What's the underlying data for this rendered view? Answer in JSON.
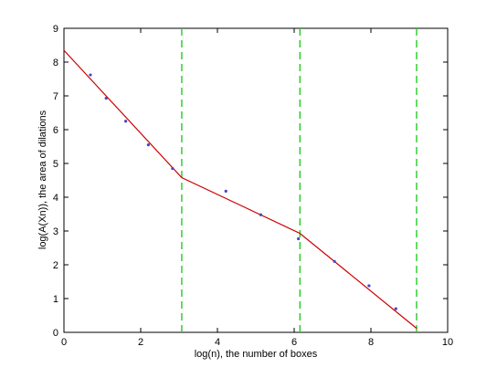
{
  "chart_data": {
    "type": "scatter",
    "title": "",
    "xlabel": "log(n), the number of boxes",
    "ylabel": "log(A(Xn)), the area of dilations",
    "xlim": [
      0,
      10
    ],
    "ylim": [
      0,
      9
    ],
    "xticks": [
      0,
      2,
      4,
      6,
      8,
      10
    ],
    "yticks": [
      0,
      1,
      2,
      3,
      4,
      5,
      6,
      7,
      8,
      9
    ],
    "grid": false,
    "series": [
      {
        "kind": "points",
        "color": "#4444cc",
        "x": [
          0.69,
          1.1,
          1.61,
          2.2,
          2.83,
          4.22,
          5.13,
          6.11,
          7.05,
          7.95,
          8.65
        ],
        "y": [
          7.62,
          6.93,
          6.25,
          5.55,
          4.85,
          4.18,
          3.48,
          2.77,
          2.1,
          1.38,
          0.7
        ]
      },
      {
        "kind": "line",
        "color": "#cc0000",
        "x": [
          0.0,
          3.07,
          6.15,
          9.19
        ],
        "y": [
          8.35,
          4.58,
          2.93,
          0.12
        ]
      }
    ],
    "vlines": {
      "color": "#22cc22",
      "x": [
        3.07,
        6.15,
        9.19
      ]
    }
  }
}
